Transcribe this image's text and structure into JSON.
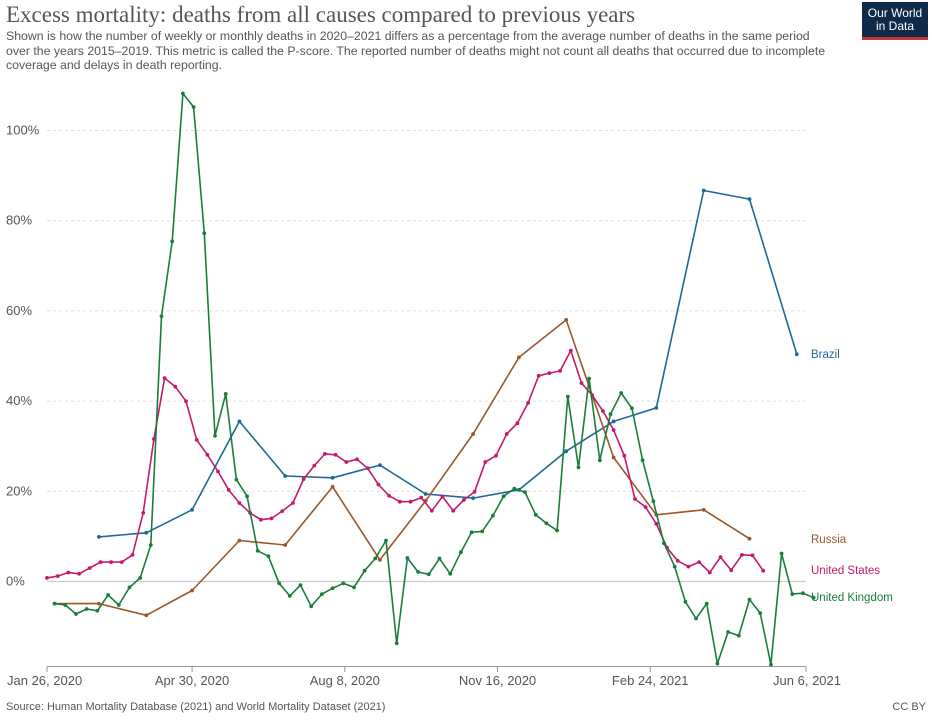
{
  "header": {
    "title": "Excess mortality: deaths from all causes compared to previous years",
    "subtitle": "Shown is how the number of weekly or monthly deaths in 2020–2021 differs as a percentage from the average number of deaths in the same period over the years 2015–2019. This metric is called the P-score. The reported number of deaths might not count all deaths that occurred due to incomplete coverage and delays in death reporting.",
    "logo_line1": "Our World",
    "logo_line2": "in Data"
  },
  "footer": {
    "source": "Source: Human Mortality Database (2021) and World Mortality Dataset (2021)",
    "license": "CC BY"
  },
  "colors": {
    "Brazil": "#1d6996",
    "Russia": "#99582a",
    "United States": "#c41a6d",
    "United Kingdom": "#1a7d3b",
    "grid": "#dddddd",
    "zero_line": "#cccccc"
  },
  "chart_data": {
    "type": "line",
    "title": "Excess mortality: deaths from all causes compared to previous years",
    "x_axis": {
      "type": "date",
      "range": [
        "2020-01-26",
        "2021-06-06"
      ],
      "ticks": [
        {
          "date": "2020-01-26",
          "label": "Jan 26, 2020"
        },
        {
          "date": "2020-04-30",
          "label": "Apr 30, 2020"
        },
        {
          "date": "2020-08-08",
          "label": "Aug 8, 2020"
        },
        {
          "date": "2020-11-16",
          "label": "Nov 16, 2020"
        },
        {
          "date": "2021-02-24",
          "label": "Feb 24, 2021"
        },
        {
          "date": "2021-06-06",
          "label": "Jun 6, 2021"
        }
      ]
    },
    "y_axis": {
      "unit": "%",
      "ylim": [
        -20,
        110
      ],
      "ticks": [
        {
          "value": 0,
          "label": "0%"
        },
        {
          "value": 20,
          "label": "20%"
        },
        {
          "value": 40,
          "label": "40%"
        },
        {
          "value": 60,
          "label": "60%"
        },
        {
          "value": 80,
          "label": "80%"
        },
        {
          "value": 100,
          "label": "100%"
        }
      ],
      "grid": true
    },
    "legend": "inline labels at right end of lines",
    "series": [
      {
        "name": "Brazil",
        "points": [
          [
            "2020-02-29",
            9.9
          ],
          [
            "2020-03-31",
            10.8
          ],
          [
            "2020-04-30",
            15.9
          ],
          [
            "2020-05-31",
            35.5
          ],
          [
            "2020-06-30",
            23.4
          ],
          [
            "2020-07-31",
            23.0
          ],
          [
            "2020-08-31",
            25.8
          ],
          [
            "2020-09-30",
            19.4
          ],
          [
            "2020-10-31",
            18.5
          ],
          [
            "2020-11-30",
            20.3
          ],
          [
            "2020-12-31",
            28.9
          ],
          [
            "2021-01-31",
            35.5
          ],
          [
            "2021-02-28",
            38.5
          ],
          [
            "2021-03-31",
            86.7
          ],
          [
            "2021-04-30",
            84.8
          ],
          [
            "2021-05-31",
            50.4
          ]
        ]
      },
      {
        "name": "Russia",
        "points": [
          [
            "2020-01-31",
            -4.9
          ],
          [
            "2020-02-29",
            -4.9
          ],
          [
            "2020-03-31",
            -7.5
          ],
          [
            "2020-04-30",
            -2.0
          ],
          [
            "2020-05-31",
            9.1
          ],
          [
            "2020-06-30",
            8.1
          ],
          [
            "2020-07-31",
            21.0
          ],
          [
            "2020-08-31",
            4.8
          ],
          [
            "2020-09-30",
            17.9
          ],
          [
            "2020-10-31",
            32.7
          ],
          [
            "2020-11-30",
            49.7
          ],
          [
            "2020-12-31",
            58.0
          ],
          [
            "2021-01-31",
            27.5
          ],
          [
            "2021-02-28",
            14.8
          ],
          [
            "2021-03-31",
            15.9
          ],
          [
            "2021-04-30",
            9.5
          ]
        ]
      },
      {
        "name": "United States",
        "points": [
          [
            "2020-01-26",
            0.8
          ],
          [
            "2020-02-02",
            1.2
          ],
          [
            "2020-02-09",
            2.0
          ],
          [
            "2020-02-16",
            1.7
          ],
          [
            "2020-02-23",
            3.0
          ],
          [
            "2020-03-01",
            4.3
          ],
          [
            "2020-03-08",
            4.3
          ],
          [
            "2020-03-15",
            4.3
          ],
          [
            "2020-03-22",
            5.9
          ],
          [
            "2020-03-29",
            15.2
          ],
          [
            "2020-04-05",
            31.6
          ],
          [
            "2020-04-12",
            45.1
          ],
          [
            "2020-04-19",
            43.2
          ],
          [
            "2020-04-26",
            40.0
          ],
          [
            "2020-05-03",
            31.4
          ],
          [
            "2020-05-10",
            28.1
          ],
          [
            "2020-05-17",
            24.4
          ],
          [
            "2020-05-24",
            20.3
          ],
          [
            "2020-05-31",
            17.4
          ],
          [
            "2020-06-07",
            15.2
          ],
          [
            "2020-06-14",
            13.7
          ],
          [
            "2020-06-21",
            14.0
          ],
          [
            "2020-06-28",
            15.6
          ],
          [
            "2020-07-05",
            17.4
          ],
          [
            "2020-07-12",
            22.7
          ],
          [
            "2020-07-19",
            25.7
          ],
          [
            "2020-07-26",
            28.3
          ],
          [
            "2020-08-02",
            28.1
          ],
          [
            "2020-08-09",
            26.5
          ],
          [
            "2020-08-16",
            27.1
          ],
          [
            "2020-08-23",
            25.1
          ],
          [
            "2020-08-30",
            21.5
          ],
          [
            "2020-09-06",
            19.0
          ],
          [
            "2020-09-13",
            17.7
          ],
          [
            "2020-09-20",
            17.7
          ],
          [
            "2020-09-27",
            18.6
          ],
          [
            "2020-10-04",
            15.7
          ],
          [
            "2020-10-11",
            18.8
          ],
          [
            "2020-10-18",
            15.7
          ],
          [
            "2020-10-25",
            18.1
          ],
          [
            "2020-11-01",
            19.9
          ],
          [
            "2020-11-08",
            26.5
          ],
          [
            "2020-11-15",
            27.9
          ],
          [
            "2020-11-22",
            32.7
          ],
          [
            "2020-11-29",
            35.1
          ],
          [
            "2020-12-06",
            39.6
          ],
          [
            "2020-12-13",
            45.6
          ],
          [
            "2020-12-20",
            46.2
          ],
          [
            "2020-12-27",
            46.7
          ],
          [
            "2021-01-03",
            51.2
          ],
          [
            "2021-01-10",
            44.0
          ],
          [
            "2021-01-17",
            41.3
          ],
          [
            "2021-01-24",
            37.8
          ],
          [
            "2021-01-31",
            33.6
          ],
          [
            "2021-02-07",
            27.9
          ],
          [
            "2021-02-14",
            18.3
          ],
          [
            "2021-02-21",
            16.5
          ],
          [
            "2021-02-28",
            12.8
          ],
          [
            "2021-03-07",
            7.5
          ],
          [
            "2021-03-14",
            4.6
          ],
          [
            "2021-03-21",
            3.3
          ],
          [
            "2021-03-28",
            4.3
          ],
          [
            "2021-04-04",
            2.0
          ],
          [
            "2021-04-11",
            5.4
          ],
          [
            "2021-04-18",
            2.5
          ],
          [
            "2021-04-25",
            5.9
          ],
          [
            "2021-05-02",
            5.8
          ],
          [
            "2021-05-09",
            2.4
          ]
        ]
      },
      {
        "name": "United Kingdom",
        "points": [
          [
            "2020-01-31",
            -4.9
          ],
          [
            "2020-02-07",
            -5.2
          ],
          [
            "2020-02-14",
            -7.2
          ],
          [
            "2020-02-21",
            -6.1
          ],
          [
            "2020-02-28",
            -6.5
          ],
          [
            "2020-03-06",
            -3.0
          ],
          [
            "2020-03-13",
            -5.2
          ],
          [
            "2020-03-20",
            -1.3
          ],
          [
            "2020-03-27",
            0.8
          ],
          [
            "2020-04-03",
            8.1
          ],
          [
            "2020-04-10",
            58.8
          ],
          [
            "2020-04-17",
            75.4
          ],
          [
            "2020-04-24",
            108.2
          ],
          [
            "2020-05-01",
            105.2
          ],
          [
            "2020-05-08",
            77.2
          ],
          [
            "2020-05-15",
            32.3
          ],
          [
            "2020-05-22",
            41.6
          ],
          [
            "2020-05-29",
            22.6
          ],
          [
            "2020-06-05",
            18.9
          ],
          [
            "2020-06-12",
            6.8
          ],
          [
            "2020-06-19",
            5.6
          ],
          [
            "2020-06-26",
            -0.4
          ],
          [
            "2020-07-03",
            -3.2
          ],
          [
            "2020-07-10",
            -0.8
          ],
          [
            "2020-07-17",
            -5.5
          ],
          [
            "2020-07-24",
            -2.8
          ],
          [
            "2020-07-31",
            -1.5
          ],
          [
            "2020-08-07",
            -0.4
          ],
          [
            "2020-08-14",
            -1.3
          ],
          [
            "2020-08-21",
            2.4
          ],
          [
            "2020-08-28",
            5.1
          ],
          [
            "2020-09-04",
            9.1
          ],
          [
            "2020-09-11",
            -13.7
          ],
          [
            "2020-09-18",
            5.2
          ],
          [
            "2020-09-25",
            2.1
          ],
          [
            "2020-10-02",
            1.6
          ],
          [
            "2020-10-09",
            5.1
          ],
          [
            "2020-10-16",
            1.7
          ],
          [
            "2020-10-23",
            6.5
          ],
          [
            "2020-10-30",
            10.9
          ],
          [
            "2020-11-06",
            11.1
          ],
          [
            "2020-11-13",
            14.6
          ],
          [
            "2020-11-20",
            18.9
          ],
          [
            "2020-11-27",
            20.6
          ],
          [
            "2020-12-04",
            19.8
          ],
          [
            "2020-12-11",
            14.8
          ],
          [
            "2020-12-18",
            12.9
          ],
          [
            "2020-12-25",
            11.3
          ],
          [
            "2021-01-01",
            41.0
          ],
          [
            "2021-01-08",
            25.3
          ],
          [
            "2021-01-15",
            45.0
          ],
          [
            "2021-01-22",
            26.9
          ],
          [
            "2021-01-29",
            37.1
          ],
          [
            "2021-02-05",
            41.8
          ],
          [
            "2021-02-12",
            38.4
          ],
          [
            "2021-02-19",
            26.9
          ],
          [
            "2021-02-26",
            17.8
          ],
          [
            "2021-03-05",
            8.5
          ],
          [
            "2021-03-12",
            3.3
          ],
          [
            "2021-03-19",
            -4.5
          ],
          [
            "2021-03-26",
            -8.2
          ],
          [
            "2021-04-02",
            -4.9
          ],
          [
            "2021-04-09",
            -18.2
          ],
          [
            "2021-04-16",
            -11.2
          ],
          [
            "2021-04-23",
            -12.0
          ],
          [
            "2021-04-30",
            -4.0
          ],
          [
            "2021-05-07",
            -7.0
          ],
          [
            "2021-05-14",
            -18.4
          ],
          [
            "2021-05-21",
            6.2
          ],
          [
            "2021-05-28",
            -2.8
          ],
          [
            "2021-06-04",
            -2.6
          ],
          [
            "2021-06-11",
            -3.6
          ]
        ]
      }
    ]
  }
}
